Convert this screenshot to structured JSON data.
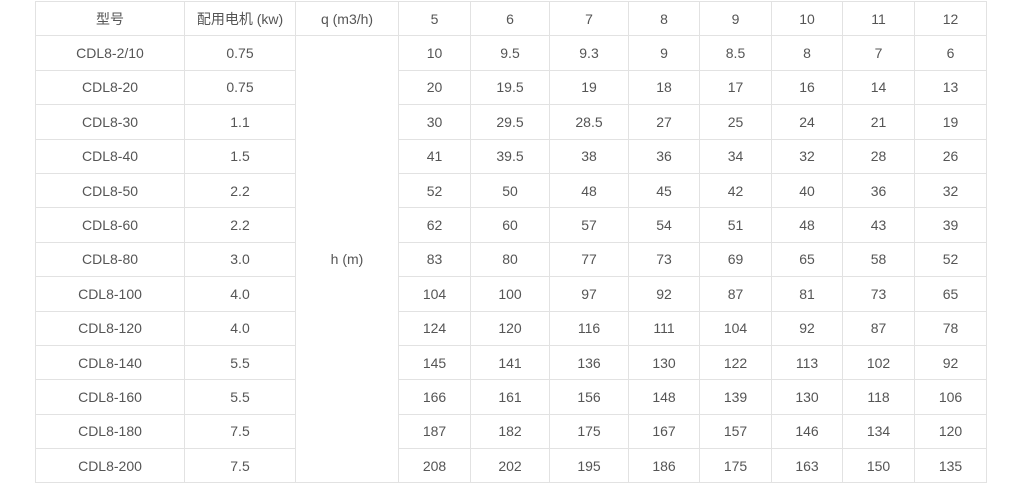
{
  "table": {
    "headers": [
      "型号",
      "配用电机 (kw)",
      "q (m3/h)",
      "5",
      "6",
      "7",
      "8",
      "9",
      "10",
      "11",
      "12"
    ],
    "merged_label": "h (m)",
    "rows": [
      {
        "model": "CDL8-2/10",
        "motor": "0.75",
        "h": [
          "10",
          "9.5",
          "9.3",
          "9",
          "8.5",
          "8",
          "7",
          "6"
        ]
      },
      {
        "model": "CDL8-20",
        "motor": "0.75",
        "h": [
          "20",
          "19.5",
          "19",
          "18",
          "17",
          "16",
          "14",
          "13"
        ]
      },
      {
        "model": "CDL8-30",
        "motor": "1.1",
        "h": [
          "30",
          "29.5",
          "28.5",
          "27",
          "25",
          "24",
          "21",
          "19"
        ]
      },
      {
        "model": "CDL8-40",
        "motor": "1.5",
        "h": [
          "41",
          "39.5",
          "38",
          "36",
          "34",
          "32",
          "28",
          "26"
        ]
      },
      {
        "model": "CDL8-50",
        "motor": "2.2",
        "h": [
          "52",
          "50",
          "48",
          "45",
          "42",
          "40",
          "36",
          "32"
        ]
      },
      {
        "model": "CDL8-60",
        "motor": "2.2",
        "h": [
          "62",
          "60",
          "57",
          "54",
          "51",
          "48",
          "43",
          "39"
        ]
      },
      {
        "model": "CDL8-80",
        "motor": "3.0",
        "h": [
          "83",
          "80",
          "77",
          "73",
          "69",
          "65",
          "58",
          "52"
        ]
      },
      {
        "model": "CDL8-100",
        "motor": "4.0",
        "h": [
          "104",
          "100",
          "97",
          "92",
          "87",
          "81",
          "73",
          "65"
        ]
      },
      {
        "model": "CDL8-120",
        "motor": "4.0",
        "h": [
          "124",
          "120",
          "116",
          "111",
          "104",
          "92",
          "87",
          "78"
        ]
      },
      {
        "model": "CDL8-140",
        "motor": "5.5",
        "h": [
          "145",
          "141",
          "136",
          "130",
          "122",
          "113",
          "102",
          "92"
        ]
      },
      {
        "model": "CDL8-160",
        "motor": "5.5",
        "h": [
          "166",
          "161",
          "156",
          "148",
          "139",
          "130",
          "118",
          "106"
        ]
      },
      {
        "model": "CDL8-180",
        "motor": "7.5",
        "h": [
          "187",
          "182",
          "175",
          "167",
          "157",
          "146",
          "134",
          "120"
        ]
      },
      {
        "model": "CDL8-200",
        "motor": "7.5",
        "h": [
          "208",
          "202",
          "195",
          "186",
          "175",
          "163",
          "150",
          "135"
        ]
      }
    ]
  }
}
